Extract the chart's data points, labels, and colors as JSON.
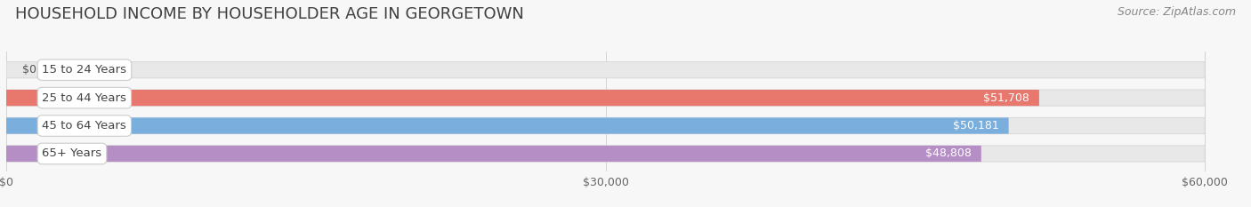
{
  "title": "HOUSEHOLD INCOME BY HOUSEHOLDER AGE IN GEORGETOWN",
  "source": "Source: ZipAtlas.com",
  "categories": [
    "15 to 24 Years",
    "25 to 44 Years",
    "45 to 64 Years",
    "65+ Years"
  ],
  "values": [
    0,
    51708,
    50181,
    48808
  ],
  "bar_colors": [
    "#f5c89a",
    "#e8776e",
    "#7aaedc",
    "#b48ec4"
  ],
  "value_labels": [
    "$0",
    "$51,708",
    "$50,181",
    "$48,808"
  ],
  "xlim_max": 62000,
  "display_max": 60000,
  "xticks": [
    0,
    30000,
    60000
  ],
  "xticklabels": [
    "$0",
    "$30,000",
    "$60,000"
  ],
  "bg_color": "#f7f7f7",
  "bar_bg_color": "#e8e8e8",
  "bar_bg_edge": "#d8d8d8",
  "title_fontsize": 13,
  "source_fontsize": 9,
  "label_fontsize": 9.5,
  "value_fontsize": 9,
  "tick_fontsize": 9,
  "bar_height": 0.58
}
